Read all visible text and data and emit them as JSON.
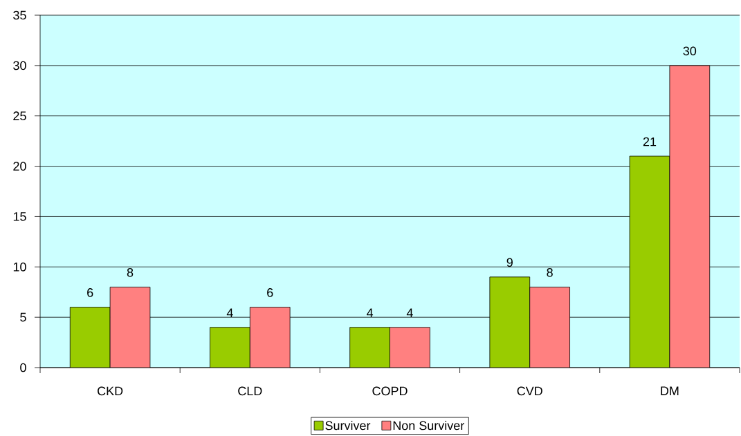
{
  "chart_data": {
    "type": "bar",
    "categories": [
      "CKD",
      "CLD",
      "COPD",
      "CVD",
      "DM"
    ],
    "series": [
      {
        "name": "Surviver",
        "color": "#99cc00",
        "values": [
          6,
          4,
          4,
          9,
          21
        ]
      },
      {
        "name": "Non Surviver",
        "color": "#ff8080",
        "values": [
          8,
          6,
          4,
          8,
          30
        ]
      }
    ],
    "ylim": [
      0,
      35
    ],
    "yticks": [
      0,
      5,
      10,
      15,
      20,
      25,
      30,
      35
    ],
    "grid": "y",
    "legend": "bottom",
    "data_labels": true
  }
}
